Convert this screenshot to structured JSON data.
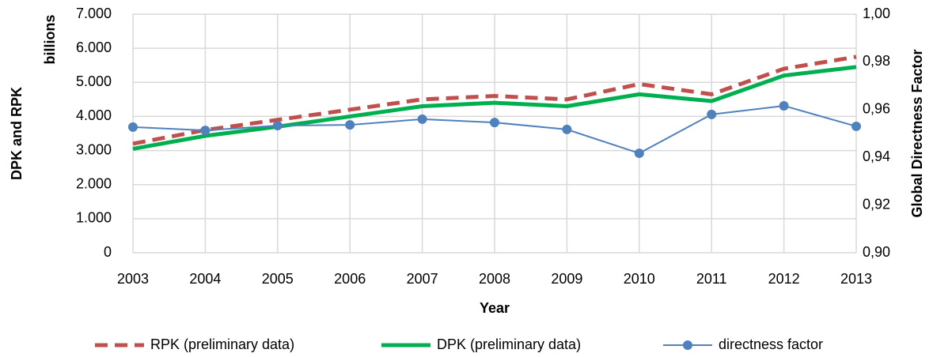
{
  "chart_data": {
    "type": "line",
    "y_title": "DPK and RPK",
    "y_unit": "billions",
    "x_title": "Year",
    "y2_title": "Global Directness Factor",
    "x": [
      2003,
      2004,
      2005,
      2006,
      2007,
      2008,
      2009,
      2010,
      2011,
      2012,
      2013
    ],
    "xlim": [
      2003,
      2013
    ],
    "xticks": [
      2003,
      2004,
      2005,
      2006,
      2007,
      2008,
      2009,
      2010,
      2011,
      2012,
      2013
    ],
    "ylim": [
      0,
      7000
    ],
    "yticks": [
      0,
      {
        "value": 1000,
        "label": "1.000"
      },
      {
        "value": 2000,
        "label": "2.000"
      },
      {
        "value": 3000,
        "label": "3.000"
      },
      {
        "value": 4000,
        "label": "4.000"
      },
      {
        "value": 5000,
        "label": "5.000"
      },
      {
        "value": 6000,
        "label": "6.000"
      },
      {
        "value": 7000,
        "label": "7.000"
      }
    ],
    "y2lim": [
      0.9,
      1.0
    ],
    "y2ticks": [
      {
        "value": 0.9,
        "label": "0,90"
      },
      {
        "value": 0.92,
        "label": "0,92"
      },
      {
        "value": 0.94,
        "label": "0,94"
      },
      {
        "value": 0.96,
        "label": "0,96"
      },
      {
        "value": 0.98,
        "label": "0,98"
      },
      {
        "value": 1.0,
        "label": "1,00"
      }
    ],
    "grid": true,
    "legend": "bottom",
    "series": [
      {
        "name": "RPK (preliminary data)",
        "color": "#c0504d",
        "style": "dashed",
        "marker": false,
        "values": [
          3200,
          3600,
          3900,
          4200,
          4500,
          4600,
          4500,
          4950,
          4650,
          5400,
          5750
        ]
      },
      {
        "name": "DPK (preliminary data)",
        "color": "#00b050",
        "style": "solid",
        "marker": false,
        "values": [
          3050,
          3430,
          3700,
          4000,
          4300,
          4400,
          4300,
          4650,
          4450,
          5200,
          5450
        ]
      },
      {
        "name": "directness factor",
        "color": "#4f81bd",
        "style": "solid",
        "marker": true,
        "axis": "y2",
        "values": [
          0.9527,
          0.9513,
          0.9533,
          0.9536,
          0.956,
          0.9546,
          0.9517,
          0.9417,
          0.958,
          0.9616,
          0.953
        ]
      }
    ]
  }
}
